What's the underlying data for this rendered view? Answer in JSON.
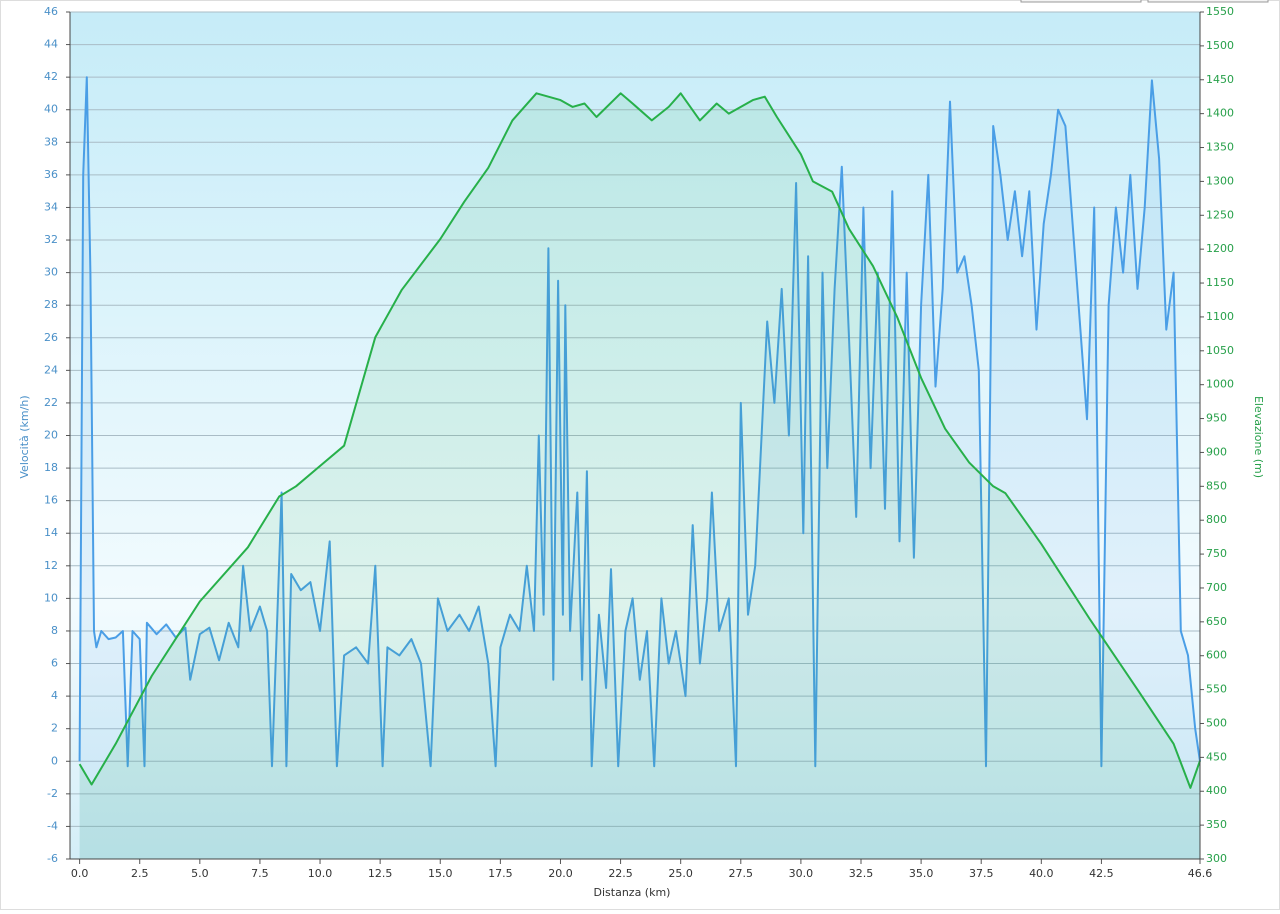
{
  "chart_data": {
    "type": "line",
    "xlabel": "Distanza  (km)",
    "ylabel": "Velocità (km/h)",
    "y2label": "Elevazione (m)",
    "xlim": [
      -0.4,
      46.6
    ],
    "ylim": [
      -6,
      46
    ],
    "y2lim": [
      300,
      1550
    ],
    "xticks": [
      {
        "value": 0,
        "label": "0.0"
      },
      2.5,
      {
        "value": 5,
        "label": "5.0"
      },
      7.5,
      {
        "value": 10,
        "label": "10.0"
      },
      12.5,
      {
        "value": 15,
        "label": "15.0"
      },
      17.5,
      {
        "value": 20,
        "label": "20.0"
      },
      22.5,
      {
        "value": 25,
        "label": "25.0"
      },
      27.5,
      {
        "value": 30,
        "label": "30.0"
      },
      32.5,
      {
        "value": 35,
        "label": "35.0"
      },
      37.5,
      {
        "value": 40,
        "label": "40.0"
      },
      42.5,
      46.6
    ],
    "yticks": [
      -6,
      -4,
      -2,
      0,
      2,
      4,
      6,
      8,
      10,
      12,
      14,
      16,
      18,
      20,
      22,
      24,
      26,
      28,
      30,
      32,
      34,
      36,
      38,
      40,
      42,
      44,
      46
    ],
    "y2ticks": [
      300,
      350,
      400,
      450,
      500,
      550,
      600,
      650,
      700,
      750,
      800,
      850,
      900,
      950,
      1000,
      1050,
      1100,
      1150,
      1200,
      1250,
      1300,
      1350,
      1400,
      1450,
      1500,
      1550
    ],
    "grid": true,
    "series": [
      {
        "color": "#4a9ee6",
        "x": [
          0,
          0.05,
          0.15,
          0.3,
          0.45,
          0.6,
          0.7,
          0.9,
          1.2,
          1.5,
          1.8,
          2.0,
          2.2,
          2.5,
          2.7,
          2.8,
          3.2,
          3.6,
          4.0,
          4.4,
          4.6,
          5.0,
          5.4,
          5.8,
          6.2,
          6.6,
          6.8,
          7.1,
          7.5,
          7.8,
          8.0,
          8.2,
          8.4,
          8.6,
          8.8,
          9.2,
          9.6,
          10.0,
          10.4,
          10.7,
          11.0,
          11.5,
          12.0,
          12.3,
          12.6,
          12.8,
          13.3,
          13.8,
          14.2,
          14.6,
          14.9,
          15.3,
          15.8,
          16.2,
          16.6,
          17.0,
          17.3,
          17.5,
          17.9,
          18.3,
          18.6,
          18.9,
          19.1,
          19.3,
          19.5,
          19.7,
          19.9,
          20.1,
          20.2,
          20.4,
          20.7,
          20.9,
          21.1,
          21.3,
          21.6,
          21.9,
          22.1,
          22.4,
          22.7,
          23.0,
          23.3,
          23.6,
          23.9,
          24.2,
          24.5,
          24.8,
          25.2,
          25.5,
          25.8,
          26.1,
          26.3,
          26.6,
          27.0,
          27.3,
          27.5,
          27.8,
          28.1,
          28.3,
          28.6,
          28.9,
          29.2,
          29.5,
          29.8,
          30.1,
          30.3,
          30.6,
          30.9,
          31.1,
          31.4,
          31.7,
          32.0,
          32.3,
          32.6,
          32.9,
          33.2,
          33.5,
          33.8,
          34.1,
          34.4,
          34.7,
          35.0,
          35.3,
          35.6,
          35.9,
          36.2,
          36.5,
          36.8,
          37.1,
          37.4,
          37.7,
          38.0,
          38.3,
          38.6,
          38.9,
          39.2,
          39.5,
          39.8,
          40.1,
          40.4,
          40.7,
          41.0,
          41.3,
          41.6,
          41.9,
          42.2,
          42.5,
          42.8,
          43.1,
          43.4,
          43.7,
          44.0,
          44.3,
          44.6,
          44.9,
          45.2,
          45.5,
          45.8,
          46.1,
          46.4,
          46.6
        ],
        "values": [
          0,
          12,
          36,
          42,
          30,
          8,
          7,
          8,
          7.5,
          7.6,
          8,
          -0.3,
          8,
          7.5,
          -0.3,
          8.5,
          7.8,
          8.4,
          7.6,
          8.2,
          5,
          7.8,
          8.2,
          6.2,
          8.5,
          7,
          12,
          8,
          9.5,
          8,
          -0.3,
          8,
          16.5,
          -0.3,
          11.5,
          10.5,
          11,
          8,
          13.5,
          -0.3,
          6.5,
          7,
          6,
          12,
          -0.3,
          7,
          6.5,
          7.5,
          6,
          -0.3,
          10,
          8,
          9,
          8,
          9.5,
          6,
          -0.3,
          7,
          9,
          8,
          12,
          8,
          20,
          9,
          31.5,
          5,
          29.5,
          9,
          28,
          8,
          16.5,
          5,
          17.8,
          -0.3,
          9,
          4.5,
          11.8,
          -0.3,
          8,
          10,
          5,
          8,
          -0.3,
          10,
          6,
          8,
          4,
          14.5,
          6,
          10,
          16.5,
          8,
          10,
          -0.3,
          22,
          9,
          12,
          18,
          27,
          22,
          29,
          20,
          35.5,
          14,
          31,
          -0.3,
          30,
          18,
          29,
          36.5,
          26,
          15,
          34,
          18,
          30,
          15.5,
          35,
          13.5,
          30,
          12.5,
          28,
          36,
          23,
          29,
          40.5,
          30,
          31,
          28,
          24,
          -0.3,
          39,
          36,
          32,
          35,
          31,
          35,
          26.5,
          33,
          36,
          40,
          39,
          33,
          27,
          21,
          34,
          -0.3,
          28,
          34,
          30,
          36,
          29,
          34,
          41.8,
          37,
          26.5,
          30,
          8,
          6.5,
          2,
          0
        ]
      },
      {
        "color": "#27b04a",
        "axis": "y2",
        "x": [
          0,
          0.5,
          1.5,
          3,
          5,
          7,
          8.3,
          9,
          10,
          11,
          12.3,
          13.4,
          15,
          16,
          17,
          18,
          19,
          20,
          20.5,
          21,
          21.5,
          22.5,
          23,
          23.8,
          24.5,
          25,
          25.8,
          26.5,
          27,
          28,
          28.5,
          29,
          30,
          30.5,
          31.3,
          32,
          33,
          34,
          35,
          36,
          37,
          38,
          38.5,
          40,
          42,
          44,
          45.5,
          46.2,
          46.6
        ],
        "values": [
          440,
          410,
          470,
          570,
          680,
          760,
          835,
          850,
          880,
          910,
          1070,
          1140,
          1215,
          1270,
          1320,
          1390,
          1430,
          1420,
          1410,
          1415,
          1395,
          1430,
          1415,
          1390,
          1410,
          1430,
          1390,
          1415,
          1400,
          1420,
          1425,
          1395,
          1340,
          1300,
          1285,
          1230,
          1175,
          1100,
          1010,
          935,
          885,
          850,
          840,
          765,
          655,
          550,
          470,
          405,
          445
        ]
      }
    ]
  }
}
